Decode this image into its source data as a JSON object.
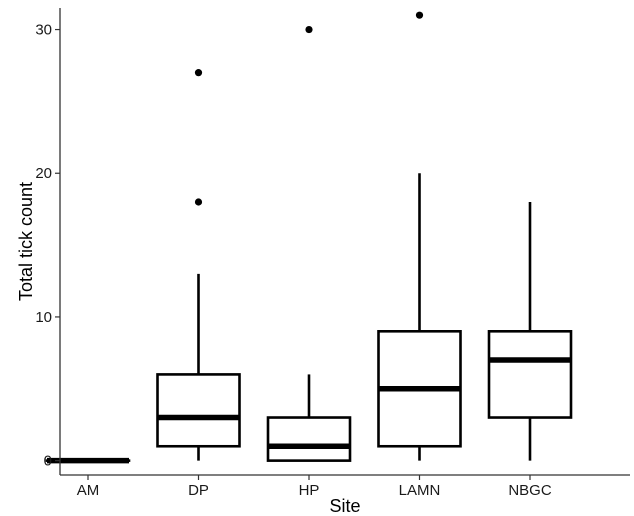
{
  "chart_data": {
    "type": "boxplot",
    "title": "",
    "xlabel": "Site",
    "ylabel": "Total tick count",
    "categories": [
      "AM",
      "DP",
      "HP",
      "LAMN",
      "NBGC"
    ],
    "ylim": [
      -1,
      31.5
    ],
    "yticks": [
      0,
      10,
      20,
      30
    ],
    "ytick_labels": [
      "0",
      "10",
      "20",
      "30"
    ],
    "grid": false,
    "boxes": [
      {
        "category": "AM",
        "whisker_low": 0,
        "q1": 0,
        "median": 0,
        "q3": 0,
        "whisker_high": 0,
        "outliers": []
      },
      {
        "category": "DP",
        "whisker_low": 0,
        "q1": 1,
        "median": 3,
        "q3": 6,
        "whisker_high": 13,
        "outliers": [
          18,
          27
        ]
      },
      {
        "category": "HP",
        "whisker_low": 0,
        "q1": 0,
        "median": 1,
        "q3": 3,
        "whisker_high": 6,
        "outliers": [
          30
        ]
      },
      {
        "category": "LAMN",
        "whisker_low": 0,
        "q1": 1,
        "median": 5,
        "q3": 9,
        "whisker_high": 20,
        "outliers": [
          31
        ]
      },
      {
        "category": "NBGC",
        "whisker_low": 0,
        "q1": 3,
        "median": 7,
        "q3": 9,
        "whisker_high": 18,
        "outliers": []
      }
    ]
  }
}
